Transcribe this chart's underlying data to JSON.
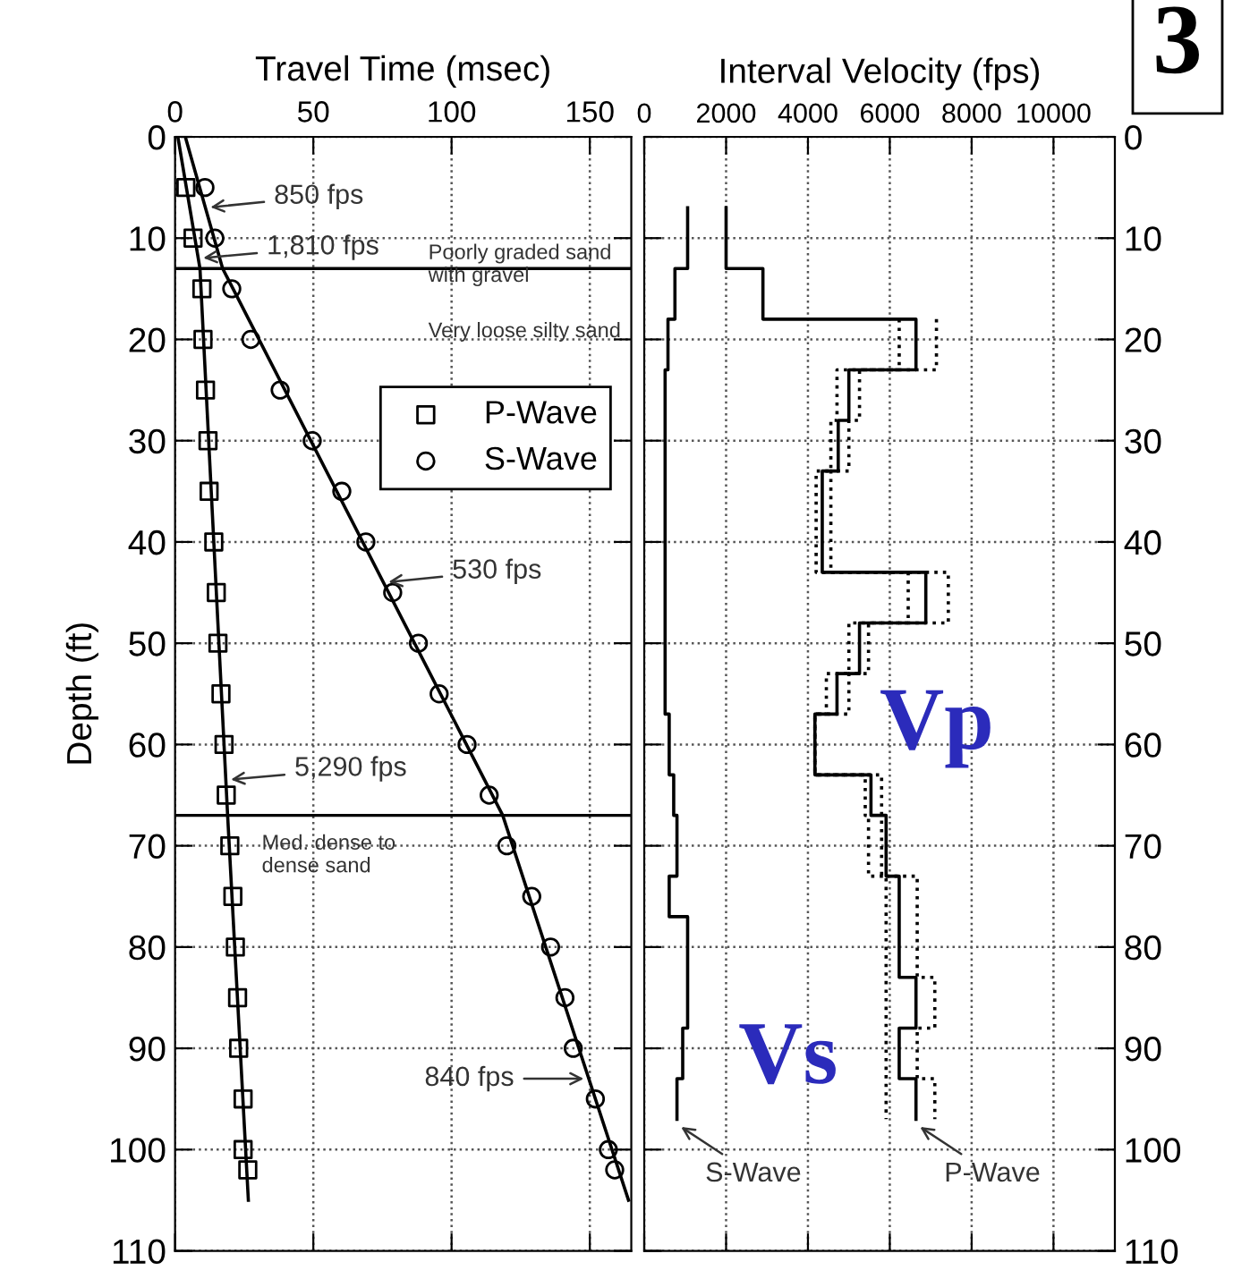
{
  "chart_data": [
    {
      "type": "scatter",
      "xlabel": "Travel Time (msec)",
      "ylabel": "Depth (ft)",
      "xlim": [
        0,
        165
      ],
      "xticks": [
        0,
        50,
        100,
        150
      ],
      "ylim": [
        110,
        0
      ],
      "yticks": [
        0,
        10,
        20,
        30,
        40,
        50,
        60,
        70,
        80,
        90,
        100,
        110
      ],
      "grid": true,
      "legend": "top right",
      "line_style": "solid",
      "series": [
        {
          "name": "P-Wave",
          "marker": "square",
          "color": "#000000",
          "x": [
            3.9,
            6.5,
            9.7,
            10.1,
            11.0,
            11.9,
            12.3,
            14.0,
            14.9,
            15.5,
            16.6,
            17.7,
            18.5,
            19.8,
            20.9,
            21.8,
            22.6,
            23.0,
            24.6,
            24.6,
            26.3
          ],
          "values": [
            5,
            10,
            15,
            20,
            25,
            30,
            35,
            40,
            45,
            50,
            55,
            60,
            65,
            70,
            75,
            80,
            85,
            90,
            95,
            100,
            102
          ]
        },
        {
          "name": "S-Wave",
          "marker": "circle",
          "color": "#000000",
          "x": [
            10.8,
            14.4,
            20.5,
            27.4,
            38.0,
            49.6,
            60.3,
            69.0,
            78.7,
            88.0,
            95.5,
            105.6,
            113.6,
            120.0,
            129.0,
            135.8,
            141.0,
            144.0,
            152.0,
            156.7,
            159.0
          ],
          "values": [
            5,
            10,
            15,
            20,
            25,
            30,
            35,
            40,
            45,
            50,
            55,
            60,
            65,
            70,
            75,
            80,
            85,
            90,
            95,
            100,
            102
          ]
        },
        {
          "type": "line",
          "color": "#000000",
          "x": [
            1,
            9,
            19,
            26.5
          ],
          "values": [
            0,
            13,
            67,
            105
          ]
        },
        {
          "type": "line",
          "color": "#000000",
          "x": [
            3.7,
            17.2,
            118.5,
            164
          ],
          "values": [
            0,
            13,
            67,
            105
          ]
        }
      ],
      "ref_lines": [
        {
          "axis": "y",
          "value": 13,
          "color": "#000000"
        },
        {
          "axis": "y",
          "value": 67,
          "color": "#000000"
        }
      ],
      "annotations": [
        {
          "text": "850 fps",
          "x": 11.0,
          "y": 7
        },
        {
          "text": "1,810 fps",
          "x": 8.4,
          "y": 12
        },
        {
          "text": "530 fps",
          "x": 75.4,
          "y": 44
        },
        {
          "text": "5,290 fps",
          "x": 18.4,
          "y": 63.5
        },
        {
          "text": "840 fps",
          "x": 149.6,
          "y": 93
        },
        "Poorly graded sand\nwith gravel",
        "Very loose silty sand",
        "Med. dense to\ndense sand"
      ]
    },
    {
      "type": "line",
      "xlabel": "Interval Velocity (fps)",
      "xlim": [
        0,
        11500
      ],
      "xticks": [
        0,
        2000,
        4000,
        6000,
        8000,
        10000
      ],
      "ylim": [
        110,
        0
      ],
      "yticks": [
        0,
        10,
        20,
        30,
        40,
        50,
        60,
        70,
        80,
        90,
        100,
        110
      ],
      "grid": true,
      "series": [
        {
          "type": "line",
          "color": "#000000",
          "line_style": "solid",
          "x": [
            1060,
            1060,
            750,
            750,
            580,
            580,
            510,
            510,
            610,
            610,
            720,
            720,
            800,
            800,
            610,
            610,
            1060,
            1060,
            940,
            940,
            800,
            800
          ],
          "values": [
            7,
            13,
            13,
            18,
            18,
            23,
            23,
            57,
            57,
            63,
            63,
            67,
            67,
            73,
            73,
            77,
            77,
            88,
            88,
            93,
            93,
            97
          ]
        },
        {
          "type": "line",
          "color": "#000000",
          "line_style": "solid",
          "x": [
            2000,
            2000,
            2900,
            2900,
            6640,
            6640,
            5000,
            5000,
            4740,
            4740,
            4350,
            4350,
            6880,
            6880,
            5260,
            5260,
            4710,
            4710,
            4170,
            4170,
            5540,
            5540,
            5910,
            5910,
            6230,
            6230,
            6640,
            6640,
            6230,
            6230,
            6640,
            6640
          ],
          "values": [
            7,
            13,
            13,
            18,
            18,
            23,
            23,
            28,
            28,
            33,
            33,
            43,
            43,
            48,
            48,
            53,
            53,
            57,
            57,
            63,
            63,
            67,
            67,
            73,
            73,
            83,
            83,
            88,
            88,
            93,
            93,
            97
          ]
        },
        {
          "type": "line",
          "color": "#000000",
          "line_style": "dotted",
          "x": [
            6230,
            6230,
            4710,
            4710,
            4560,
            4560,
            4200,
            4200,
            6450,
            6450,
            5000,
            5000,
            4450,
            4450,
            4170,
            4170,
            5400,
            5400,
            5480,
            5480,
            5910,
            5910
          ],
          "values": [
            18,
            23,
            23,
            28,
            28,
            33,
            33,
            43,
            43,
            48,
            48,
            53,
            53,
            57,
            57,
            63,
            63,
            67,
            67,
            73,
            73,
            97
          ]
        },
        {
          "type": "line",
          "color": "#000000",
          "line_style": "dotted",
          "x": [
            7140,
            7140,
            5260,
            5260,
            5000,
            5000,
            4560,
            4560,
            7430,
            7430,
            5480,
            5480,
            5000,
            5000,
            4170,
            4170,
            5800,
            5800,
            6670,
            6670,
            7100,
            7100,
            6670,
            6670,
            7100,
            7100
          ],
          "values": [
            18,
            23,
            23,
            28,
            28,
            33,
            33,
            43,
            43,
            48,
            48,
            53,
            53,
            57,
            57,
            63,
            63,
            73,
            73,
            83,
            83,
            88,
            88,
            93,
            93,
            97
          ]
        }
      ],
      "annotations": [
        {
          "text": "S-Wave",
          "x": 800,
          "y": 97.5
        },
        {
          "text": "P-Wave",
          "x": 6640,
          "y": 97.5
        },
        "Vs",
        "Vp",
        "3"
      ]
    }
  ]
}
